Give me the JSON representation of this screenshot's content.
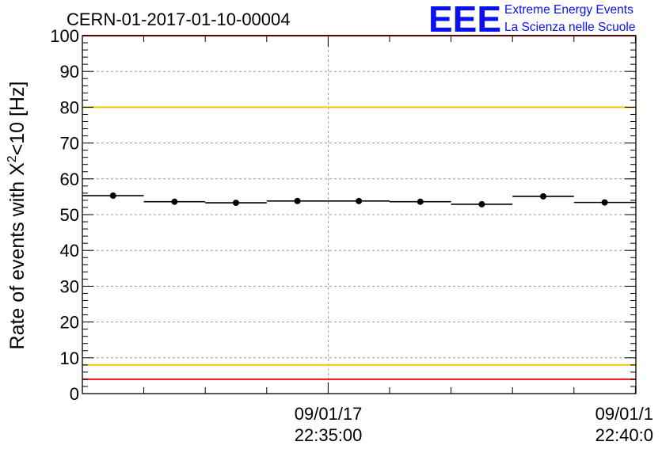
{
  "header": {
    "run_id": "CERN-01-2017-01-10-00004"
  },
  "logo": {
    "mark": "EEE",
    "line1": "Extreme Energy Events",
    "line2": "La Scienza nelle Scuole"
  },
  "chart_data": {
    "type": "scatter",
    "title": "CERN-01-2017-01-10-00004",
    "ylabel_main": "Rate of events with X",
    "ylabel_sup": "2",
    "ylabel_tail": "<10 [Hz]",
    "ylim": [
      0,
      100
    ],
    "y_ticks": [
      "0",
      "10",
      "20",
      "30",
      "40",
      "50",
      "60",
      "70",
      "80",
      "90",
      "100"
    ],
    "x_tick_labels": [
      {
        "date": "09/01/17",
        "time": "22:35:00"
      },
      {
        "date": "09/01/1",
        "time": "22:40:0"
      }
    ],
    "grid": true,
    "points": [
      {
        "bin": 1,
        "rate": 55.3
      },
      {
        "bin": 2,
        "rate": 53.6
      },
      {
        "bin": 3,
        "rate": 53.3
      },
      {
        "bin": 4,
        "rate": 53.8
      },
      {
        "bin": 5,
        "rate": 53.8
      },
      {
        "bin": 6,
        "rate": 53.6
      },
      {
        "bin": 7,
        "rate": 52.9
      },
      {
        "bin": 8,
        "rate": 55.1
      },
      {
        "bin": 9,
        "rate": 53.4
      }
    ],
    "reference_lines": [
      {
        "value": 100,
        "color": "#ee1111"
      },
      {
        "value": 80,
        "color": "#f2c80f"
      },
      {
        "value": 8,
        "color": "#f2c80f"
      },
      {
        "value": 4,
        "color": "#ee1111"
      }
    ]
  }
}
